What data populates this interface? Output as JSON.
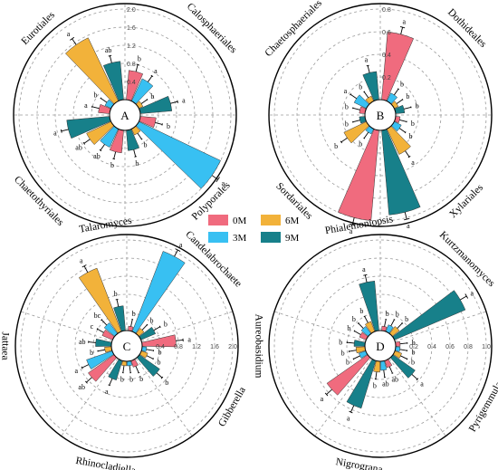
{
  "colors": {
    "0M": "#f06b7e",
    "3M": "#38c0f2",
    "6M": "#f2b23a",
    "9M": "#17808a"
  },
  "legend": {
    "items": [
      {
        "key": "0M",
        "label": "0M"
      },
      {
        "key": "3M",
        "label": "3M"
      },
      {
        "key": "6M",
        "label": "6M"
      },
      {
        "key": "9M",
        "label": "9M"
      }
    ]
  },
  "chart_data": [
    {
      "type": "polar_bar",
      "panel": "A",
      "ticks": [
        "0.4",
        "0.8",
        "1.2",
        "1.6",
        "2.0"
      ],
      "rmax": 2.0,
      "groups": [
        "Calosphaeriales",
        "Polyporales",
        "Chaetothyriales",
        "Eurotiales"
      ],
      "series": [
        {
          "name": "0M",
          "values": [
            0.65,
            0.35,
            0.5,
            0.25
          ]
        },
        {
          "name": "3M",
          "values": [
            0.55,
            2.0,
            0.45,
            0.15
          ]
        },
        {
          "name": "6M",
          "values": [
            0.1,
            0.15,
            0.6,
            1.55
          ]
        },
        {
          "name": "9M",
          "values": [
            0.7,
            0.45,
            0.95,
            0.85
          ]
        }
      ],
      "letters": [
        [
          "b",
          "b",
          "b",
          "a"
        ],
        [
          "a",
          "a",
          "ab",
          "b"
        ],
        [
          "b",
          "b",
          "ab",
          "a"
        ],
        [
          "a",
          "b",
          "a",
          "ab"
        ]
      ]
    },
    {
      "type": "polar_bar",
      "panel": "B",
      "ticks": [
        "0.2",
        "0.4",
        "0.6",
        "0.8"
      ],
      "rmax": 0.8,
      "groups": [
        "Dothideales",
        "Xylariales",
        "Sordariales",
        "Chaetosphaeriales"
      ],
      "series": [
        {
          "name": "0M",
          "values": [
            0.6,
            0.04,
            0.8,
            0.05
          ]
        },
        {
          "name": "3M",
          "values": [
            0.08,
            0.07,
            0.05,
            0.12
          ]
        },
        {
          "name": "6M",
          "values": [
            0.04,
            0.25,
            0.22,
            0.05
          ]
        },
        {
          "name": "9M",
          "values": [
            0.08,
            0.75,
            0.05,
            0.25
          ]
        }
      ],
      "letters": [
        [
          "a",
          "b",
          "a",
          "b"
        ],
        [
          "b",
          "b",
          "b",
          "a"
        ],
        [
          "b",
          "a",
          "b",
          "b"
        ],
        [
          "b",
          "a",
          "b",
          "a"
        ]
      ]
    },
    {
      "type": "polar_bar",
      "panel": "C",
      "ticks": [
        "0.4",
        "0.8",
        "1.2",
        "1.6",
        "2.0"
      ],
      "rmax": 2.0,
      "groups": [
        "Candelabrochaete",
        "Gibberella",
        "Rhinocladiella",
        "Jattaea",
        "Talaromyces"
      ],
      "series": [
        {
          "name": "0M",
          "values": [
            0.1,
            0.75,
            0.15,
            0.7,
            0.25
          ]
        },
        {
          "name": "3M",
          "values": [
            1.9,
            0.1,
            0.1,
            0.6,
            0.3
          ]
        },
        {
          "name": "6M",
          "values": [
            0.15,
            0.15,
            0.1,
            0.15,
            1.5
          ]
        },
        {
          "name": "9M",
          "values": [
            0.35,
            0.55,
            0.45,
            0.35,
            0.55
          ]
        }
      ],
      "letters": [
        [
          "b",
          "a",
          "b",
          "ab",
          "c"
        ],
        [
          "a",
          "b",
          "b",
          "a",
          "bc"
        ],
        [
          "b",
          "b",
          "b",
          "b",
          "a"
        ],
        [
          "b",
          "b",
          "a",
          "ab",
          "b"
        ]
      ]
    },
    {
      "type": "polar_bar",
      "panel": "D",
      "ticks": [
        "0.2",
        "0.4",
        "0.6",
        "0.8",
        "1.0"
      ],
      "rmax": 1.0,
      "groups": [
        "Kurtzmanomyces",
        "Pyrigemmula",
        "Nigrograna",
        "Aureobasidium",
        "Phialemoniopsis"
      ],
      "series": [
        {
          "name": "0M",
          "values": [
            0.05,
            0.05,
            0.08,
            0.55,
            0.08
          ]
        },
        {
          "name": "3M",
          "values": [
            0.08,
            0.05,
            0.1,
            0.08,
            0.1
          ]
        },
        {
          "name": "6M",
          "values": [
            0.1,
            0.08,
            0.12,
            0.1,
            0.12
          ]
        },
        {
          "name": "9M",
          "values": [
            0.85,
            0.3,
            0.55,
            0.12,
            0.55
          ]
        }
      ],
      "letters": [
        [
          "b",
          "b",
          "ab",
          "a",
          "b"
        ],
        [
          "b",
          "b",
          "ab",
          "b",
          "b"
        ],
        [
          "b",
          "b",
          "b",
          "b",
          "b"
        ],
        [
          "a",
          "a",
          "a",
          "b",
          "a"
        ]
      ]
    }
  ]
}
